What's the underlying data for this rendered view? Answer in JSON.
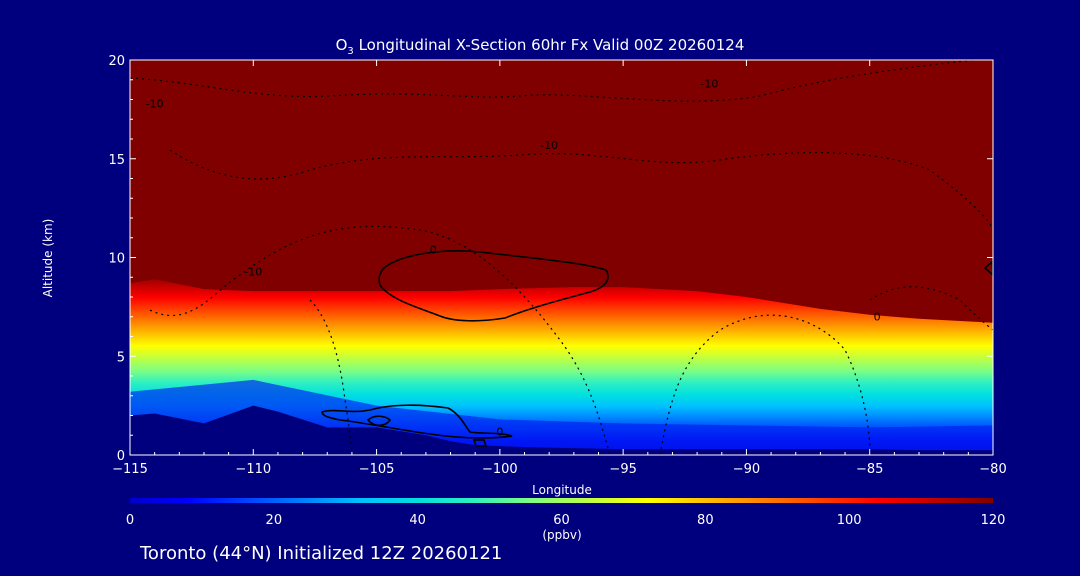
{
  "title_prefix": "O",
  "title_sub": "3",
  "title_suffix": " Longitudinal X-Section 60hr  Fx Valid 00Z 20260124",
  "footer": "Toronto (44°N) Initialized 12Z 20260121",
  "colors": {
    "background": "#00007f",
    "frame": "#ffffff",
    "top_layer": "#800000",
    "terrain": "#00007f"
  },
  "chart_data": {
    "type": "heatmap",
    "xlabel": "Longitude",
    "ylabel": "Altitude (km)",
    "xlim": [
      -115,
      -80
    ],
    "ylim": [
      0,
      20
    ],
    "x_ticks": [
      -115,
      -110,
      -105,
      -100,
      -95,
      -90,
      -85,
      -80
    ],
    "x_tick_labels": [
      "−115",
      "−110",
      "−105",
      "−100",
      "−95",
      "−90",
      "−85",
      "−80"
    ],
    "y_ticks": [
      0,
      5,
      10,
      15,
      20
    ],
    "y_tick_labels": [
      "0",
      "5",
      "10",
      "15",
      "20"
    ],
    "colorbar": {
      "min": 0,
      "max": 120,
      "ticks": [
        0,
        20,
        40,
        60,
        80,
        100,
        120
      ],
      "tick_labels": [
        "0",
        "20",
        "40",
        "60",
        "80",
        "100",
        "120"
      ],
      "unit": "(ppbv)",
      "colors": [
        "#0000cd",
        "#0000ff",
        "#0040ff",
        "#0080ff",
        "#00c0ff",
        "#00e0e0",
        "#30f0c0",
        "#80ff80",
        "#c0ff40",
        "#ffff00",
        "#ffc000",
        "#ff8000",
        "#ff4000",
        "#ff0000",
        "#c00000",
        "#800000"
      ]
    },
    "tropopause_altitude_km": {
      "longitude": [
        -115,
        -114,
        -112,
        -110,
        -108,
        -105,
        -102,
        -100,
        -97,
        -95,
        -92,
        -90,
        -87,
        -85,
        -83,
        -80
      ],
      "altitude": [
        8.7,
        8.9,
        8.4,
        8.3,
        8.3,
        8.3,
        8.3,
        8.4,
        8.5,
        8.5,
        8.3,
        8.0,
        7.4,
        7.1,
        6.9,
        6.7
      ]
    },
    "terrain_altitude_km": {
      "longitude": [
        -115,
        -114,
        -112,
        -110,
        -109,
        -107,
        -105,
        -103,
        -102,
        -101,
        -99,
        -97,
        -95,
        -90,
        -85,
        -83,
        -81,
        -80
      ],
      "altitude": [
        2.0,
        2.1,
        1.6,
        2.5,
        2.2,
        1.4,
        1.4,
        1.0,
        0.7,
        0.5,
        0.4,
        0.35,
        0.3,
        0.3,
        0.3,
        0.25,
        0.25,
        0.25
      ]
    },
    "contour_labels": [
      {
        "text": "-10",
        "lon": -114,
        "alt": 17.6
      },
      {
        "text": "-10",
        "lon": -98,
        "alt": 15.5
      },
      {
        "text": "-10",
        "lon": -91.5,
        "alt": 18.6
      },
      {
        "text": "-10",
        "lon": -110,
        "alt": 9.1
      },
      {
        "text": "0",
        "lon": -102.7,
        "alt": 10.2
      },
      {
        "text": "0",
        "lon": -84.7,
        "alt": 6.8
      },
      {
        "text": "0",
        "lon": -100,
        "alt": 1.0
      }
    ]
  }
}
